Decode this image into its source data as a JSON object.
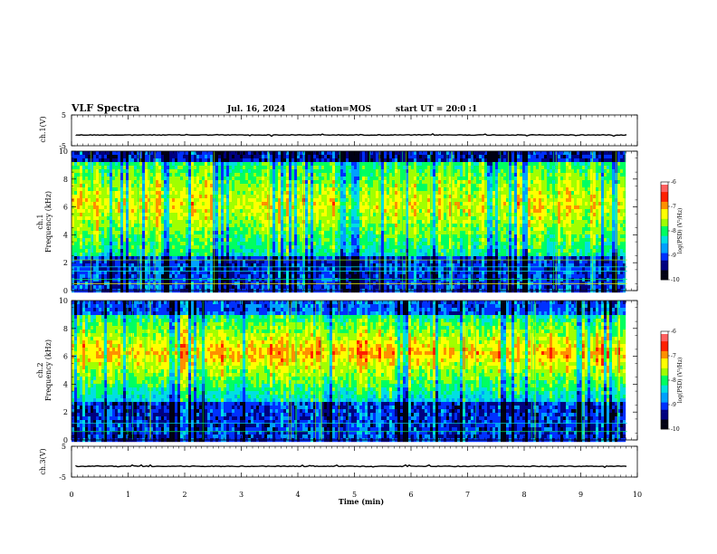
{
  "header": {
    "title": "VLF Spectra",
    "date": "Jul. 16, 2024",
    "station": "station=MOS",
    "start": "start UT =  20:0  :1"
  },
  "labels": {
    "ch1_wave": "ch.1(V)",
    "ch3_wave": "ch.3(V)",
    "ch1_spec": "ch.1",
    "ch2_spec": "ch.2",
    "freq": "Frequency (kHz)",
    "xlabel": "Time (min)",
    "cbar": "log(PSD) (V²/Hz)"
  },
  "colors": {
    "palette": [
      "#000014",
      "#000080",
      "#0030ff",
      "#00a0ff",
      "#00e0e0",
      "#00ff60",
      "#a0ff00",
      "#ffff00",
      "#ff9000",
      "#ff2000"
    ]
  },
  "chart_data": [
    {
      "type": "line",
      "name": "ch1-waveform",
      "ylabel": "ch.1(V)",
      "ylim": [
        -5,
        5
      ],
      "yticks": [
        5,
        -5
      ],
      "xlim": [
        0,
        10
      ],
      "approx_level": -1.5
    },
    {
      "type": "heatmap",
      "name": "ch1-spectrogram",
      "ylabel": "Frequency (kHz)",
      "ylim": [
        0,
        10
      ],
      "yticks": [
        0,
        2,
        4,
        6,
        8,
        10
      ],
      "xlim": [
        0,
        10
      ],
      "data_end_min": 9.82
    },
    {
      "type": "heatmap",
      "name": "ch2-spectrogram",
      "ylabel": "Frequency (kHz)",
      "ylim": [
        0,
        10
      ],
      "yticks": [
        0,
        2,
        4,
        6,
        8,
        10
      ],
      "xlim": [
        0,
        10
      ],
      "data_end_min": 9.82
    },
    {
      "type": "line",
      "name": "ch3-waveform",
      "ylabel": "ch.3(V)",
      "ylim": [
        -5,
        5
      ],
      "yticks": [
        5,
        -5
      ],
      "xlim": [
        0,
        10
      ],
      "approx_level": -1.5
    },
    {
      "type": "heatmap",
      "name": "colorbar",
      "clim": [
        -10,
        -6
      ],
      "cticks": [
        -6,
        -7,
        -8,
        -9,
        -10
      ]
    }
  ],
  "xaxis": {
    "ticks": [
      0,
      1,
      2,
      3,
      4,
      5,
      6,
      7,
      8,
      9,
      10
    ]
  }
}
